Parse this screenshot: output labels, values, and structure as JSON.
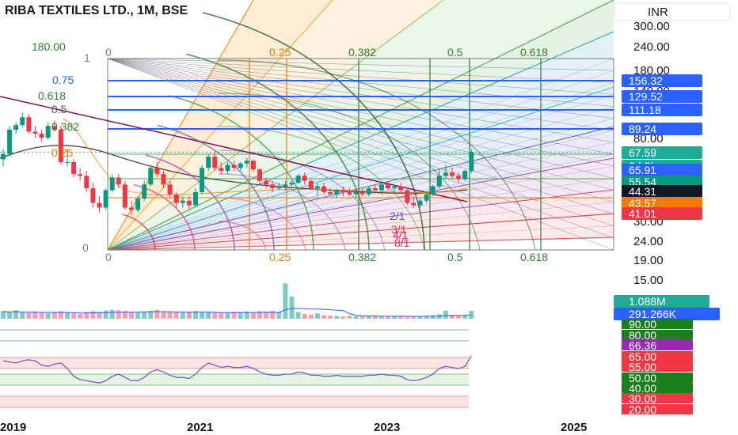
{
  "chart_data": {
    "type": "candlestick",
    "title": "RIBA TEXTILES LTD., 1M, BSE",
    "currency": "INR",
    "y_scale": "log",
    "ylim": [
      18,
      330
    ],
    "y_ticks": [
      "300.00",
      "240.00",
      "180.00",
      "140.00",
      "110.00",
      "80.00",
      "30.00",
      "24.00",
      "19.00",
      "15.00"
    ],
    "x_ticks": [
      "2019",
      "2021",
      "2023",
      "2025"
    ],
    "price_tags": [
      {
        "label": "156.32",
        "value": 156.32,
        "color": "#2962ff"
      },
      {
        "label": "129.52",
        "value": 129.52,
        "color": "#2962ff"
      },
      {
        "label": "111.18",
        "value": 111.18,
        "color": "#2962ff"
      },
      {
        "label": "89.24",
        "value": 89.24,
        "color": "#2962ff"
      },
      {
        "label": "67.59",
        "value": 67.59,
        "color": "#22ab94"
      },
      {
        "label": "3d 2h",
        "value": 63.3,
        "color": "#22ab94"
      },
      {
        "label": "65.91",
        "value": 59.5,
        "color": "#2962ff"
      },
      {
        "label": "55.54",
        "value": 55.54,
        "color": "#089981"
      },
      {
        "label": "44.31",
        "value": 44.31,
        "color": "#131722"
      },
      {
        "label": "43.57",
        "value": 43.57,
        "color": "#f57c00"
      },
      {
        "label": "41.01",
        "value": 41.01,
        "color": "#f23645"
      }
    ],
    "fib_levels_left": [
      {
        "label": "180.00",
        "color": "#2e7d32"
      },
      {
        "label": "1",
        "color": "#787b86"
      },
      {
        "label": "0.75",
        "color": "#2962ff"
      },
      {
        "label": "0.618",
        "color": "#2e7d32"
      },
      {
        "label": "0.5",
        "color": "#2e7d32"
      },
      {
        "label": "0.382",
        "color": "#2e7d32"
      },
      {
        "label": "0.25",
        "color": "#f57c00"
      },
      {
        "label": "0",
        "color": "#787b86"
      }
    ],
    "fib_levels_top": [
      {
        "label": "0",
        "color": "#787b86"
      },
      {
        "label": "0.25",
        "color": "#f57c00"
      },
      {
        "label": "0.382",
        "color": "#2e7d32"
      },
      {
        "label": "0.5",
        "color": "#2e7d32"
      },
      {
        "label": "0.618",
        "color": "#2e7d32"
      }
    ],
    "ratio_labels": [
      "2/1",
      "3/1",
      "4/1",
      "8/1"
    ],
    "candles": [
      {
        "o": 62,
        "h": 70,
        "l": 57,
        "c": 66
      },
      {
        "o": 66,
        "h": 92,
        "l": 64,
        "c": 88
      },
      {
        "o": 88,
        "h": 96,
        "l": 84,
        "c": 93
      },
      {
        "o": 93,
        "h": 108,
        "l": 90,
        "c": 102
      },
      {
        "o": 102,
        "h": 106,
        "l": 84,
        "c": 86
      },
      {
        "o": 86,
        "h": 92,
        "l": 80,
        "c": 84
      },
      {
        "o": 84,
        "h": 88,
        "l": 76,
        "c": 80
      },
      {
        "o": 80,
        "h": 96,
        "l": 78,
        "c": 92
      },
      {
        "o": 92,
        "h": 98,
        "l": 86,
        "c": 88
      },
      {
        "o": 88,
        "h": 92,
        "l": 58,
        "c": 60
      },
      {
        "o": 60,
        "h": 70,
        "l": 57,
        "c": 60
      },
      {
        "o": 60,
        "h": 62,
        "l": 50,
        "c": 52
      },
      {
        "o": 52,
        "h": 56,
        "l": 48,
        "c": 51
      },
      {
        "o": 51,
        "h": 54,
        "l": 42,
        "c": 44
      },
      {
        "o": 44,
        "h": 47,
        "l": 35,
        "c": 37
      },
      {
        "o": 37,
        "h": 40,
        "l": 33,
        "c": 35
      },
      {
        "o": 35,
        "h": 44,
        "l": 34,
        "c": 43
      },
      {
        "o": 43,
        "h": 52,
        "l": 42,
        "c": 50
      },
      {
        "o": 50,
        "h": 52,
        "l": 44,
        "c": 46
      },
      {
        "o": 46,
        "h": 48,
        "l": 34,
        "c": 35
      },
      {
        "o": 35,
        "h": 38,
        "l": 32,
        "c": 34
      },
      {
        "o": 34,
        "h": 40,
        "l": 33,
        "c": 39
      },
      {
        "o": 39,
        "h": 48,
        "l": 38,
        "c": 46
      },
      {
        "o": 46,
        "h": 58,
        "l": 45,
        "c": 56
      },
      {
        "o": 56,
        "h": 60,
        "l": 50,
        "c": 52
      },
      {
        "o": 52,
        "h": 54,
        "l": 44,
        "c": 46
      },
      {
        "o": 46,
        "h": 48,
        "l": 39,
        "c": 41
      },
      {
        "o": 41,
        "h": 42,
        "l": 35,
        "c": 37
      },
      {
        "o": 37,
        "h": 40,
        "l": 35,
        "c": 38
      },
      {
        "o": 38,
        "h": 40,
        "l": 34,
        "c": 36
      },
      {
        "o": 36,
        "h": 44,
        "l": 35,
        "c": 42
      },
      {
        "o": 42,
        "h": 58,
        "l": 41,
        "c": 56
      },
      {
        "o": 56,
        "h": 66,
        "l": 54,
        "c": 64
      },
      {
        "o": 64,
        "h": 68,
        "l": 54,
        "c": 56
      },
      {
        "o": 56,
        "h": 60,
        "l": 52,
        "c": 54
      },
      {
        "o": 54,
        "h": 60,
        "l": 52,
        "c": 58
      },
      {
        "o": 58,
        "h": 61,
        "l": 54,
        "c": 56
      },
      {
        "o": 56,
        "h": 60,
        "l": 54,
        "c": 59
      },
      {
        "o": 59,
        "h": 63,
        "l": 56,
        "c": 61
      },
      {
        "o": 61,
        "h": 62,
        "l": 53,
        "c": 55
      },
      {
        "o": 55,
        "h": 56,
        "l": 46,
        "c": 48
      },
      {
        "o": 48,
        "h": 50,
        "l": 44,
        "c": 46
      },
      {
        "o": 46,
        "h": 48,
        "l": 42,
        "c": 44
      },
      {
        "o": 44,
        "h": 47,
        "l": 43,
        "c": 45
      },
      {
        "o": 45,
        "h": 48,
        "l": 43,
        "c": 46
      },
      {
        "o": 46,
        "h": 48,
        "l": 44,
        "c": 47
      },
      {
        "o": 47,
        "h": 52,
        "l": 46,
        "c": 51
      },
      {
        "o": 51,
        "h": 53,
        "l": 46,
        "c": 48
      },
      {
        "o": 48,
        "h": 49,
        "l": 43,
        "c": 44
      },
      {
        "o": 44,
        "h": 47,
        "l": 40,
        "c": 45
      },
      {
        "o": 45,
        "h": 47,
        "l": 41,
        "c": 42
      },
      {
        "o": 42,
        "h": 44,
        "l": 40,
        "c": 41
      },
      {
        "o": 41,
        "h": 44,
        "l": 39,
        "c": 43
      },
      {
        "o": 43,
        "h": 45,
        "l": 40,
        "c": 42
      },
      {
        "o": 42,
        "h": 44,
        "l": 40,
        "c": 41
      },
      {
        "o": 41,
        "h": 43,
        "l": 39,
        "c": 42
      },
      {
        "o": 42,
        "h": 44,
        "l": 40,
        "c": 41
      },
      {
        "o": 41,
        "h": 45,
        "l": 40,
        "c": 44
      },
      {
        "o": 44,
        "h": 46,
        "l": 42,
        "c": 43
      },
      {
        "o": 43,
        "h": 47,
        "l": 41,
        "c": 46
      },
      {
        "o": 46,
        "h": 48,
        "l": 43,
        "c": 44
      },
      {
        "o": 44,
        "h": 46,
        "l": 42,
        "c": 45
      },
      {
        "o": 45,
        "h": 47,
        "l": 42,
        "c": 43
      },
      {
        "o": 43,
        "h": 44,
        "l": 36,
        "c": 37
      },
      {
        "o": 37,
        "h": 40,
        "l": 35,
        "c": 36
      },
      {
        "o": 36,
        "h": 39,
        "l": 35,
        "c": 38
      },
      {
        "o": 38,
        "h": 42,
        "l": 37,
        "c": 41
      },
      {
        "o": 41,
        "h": 46,
        "l": 40,
        "c": 45
      },
      {
        "o": 45,
        "h": 55,
        "l": 44,
        "c": 51
      },
      {
        "o": 51,
        "h": 58,
        "l": 49,
        "c": 53
      },
      {
        "o": 53,
        "h": 56,
        "l": 49,
        "c": 51
      },
      {
        "o": 51,
        "h": 53,
        "l": 47,
        "c": 49
      },
      {
        "o": 49,
        "h": 55,
        "l": 48,
        "c": 54
      },
      {
        "o": 54,
        "h": 70,
        "l": 53,
        "c": 67.59
      }
    ],
    "volume": {
      "labels": [
        "1.088M",
        "291.266K"
      ],
      "bars": [
        0.35,
        0.32,
        0.38,
        0.3,
        0.28,
        0.33,
        0.3,
        0.26,
        0.31,
        0.34,
        0.29,
        0.26,
        0.22,
        0.3,
        0.35,
        0.31,
        0.37,
        0.4,
        0.38,
        0.35,
        0.31,
        0.3,
        0.33,
        0.36,
        0.4,
        0.34,
        0.3,
        0.28,
        0.3,
        0.32,
        0.35,
        0.3,
        0.33,
        0.3,
        0.27,
        0.29,
        0.32,
        0.3,
        0.33,
        0.29,
        0.35,
        0.33,
        0.36,
        0.3,
        1.6,
        1.0,
        0.3,
        0.22,
        0.18,
        0.24,
        0.16,
        0.14,
        0.12,
        0.1,
        0.13,
        0.11,
        0.12,
        0.14,
        0.15,
        0.12,
        0.1,
        0.13,
        0.12,
        0.1,
        0.11,
        0.12,
        0.14,
        0.16,
        0.2,
        0.36,
        0.18,
        0.15,
        0.17,
        0.35
      ]
    },
    "rsi": {
      "levels": [
        "90.00",
        "80.00",
        "65.00",
        "55.00",
        "50.00",
        "40.00",
        "30.00",
        "20.00"
      ],
      "value_label": "66.36",
      "values": [
        62,
        61,
        60,
        62,
        63,
        62,
        58,
        57,
        59,
        60,
        55,
        48,
        45,
        44,
        43,
        42,
        44,
        48,
        50,
        47,
        44,
        44,
        47,
        52,
        54,
        52,
        49,
        47,
        47,
        46,
        50,
        56,
        60,
        58,
        56,
        57,
        56,
        56,
        57,
        55,
        52,
        50,
        49,
        49,
        50,
        50,
        52,
        51,
        49,
        49,
        48,
        48,
        49,
        48,
        48,
        48,
        48,
        49,
        49,
        50,
        49,
        49,
        48,
        45,
        44,
        45,
        47,
        50,
        55,
        57,
        56,
        55,
        57,
        66.36
      ]
    }
  }
}
